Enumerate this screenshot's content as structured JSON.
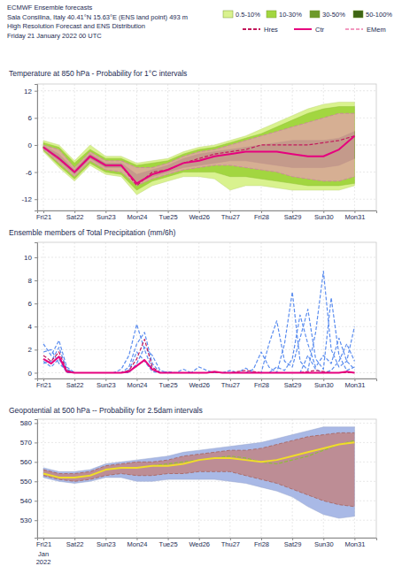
{
  "header": {
    "lines": [
      "ECMWF Ensemble forecasts",
      "Sala Consilina, Italy 40.41°N 15.63°E (ENS land point) 493 m",
      "High Resolution Forecast and ENS Distribution",
      "Friday 21 January 2022 00 UTC"
    ]
  },
  "chart_data": [
    {
      "type": "line",
      "title": "Temperature at 850 hPa - Probability for 1°C intervals",
      "grid": true,
      "legend": "top right",
      "x": [
        21,
        21.5,
        22,
        22.5,
        23,
        23.5,
        24,
        24.5,
        25,
        25.5,
        26,
        26.5,
        27,
        27.5,
        28,
        28.5,
        29,
        29.5,
        30,
        30.5,
        31
      ],
      "xlim": [
        20.8,
        31.7
      ],
      "xticks": [
        {
          "value": 21,
          "label": "Fri21"
        },
        {
          "value": 22,
          "label": "Sat22"
        },
        {
          "value": 23,
          "label": "Sun23"
        },
        {
          "value": 24,
          "label": "Mon24"
        },
        {
          "value": 25,
          "label": "Tue25"
        },
        {
          "value": 26,
          "label": "Wed26"
        },
        {
          "value": 27,
          "label": "Thu27"
        },
        {
          "value": 28,
          "label": "Fri28"
        },
        {
          "value": 29,
          "label": "Sat29"
        },
        {
          "value": 30,
          "label": "Sun30"
        },
        {
          "value": 31,
          "label": "Mon31"
        }
      ],
      "ylim": [
        -14.5,
        13.5
      ],
      "yticks": [
        -12,
        -6,
        0,
        6,
        12
      ],
      "series": [
        {
          "name": "0.5-10%",
          "type": "area",
          "color": "#d9f28f",
          "low": [
            -1.5,
            -5,
            -8,
            -4.5,
            -6.5,
            -7,
            -11,
            -9,
            -8,
            -7,
            -7,
            -7.5,
            -10,
            -9,
            -9,
            -9.5,
            -10,
            -10,
            -10,
            -10,
            -9
          ],
          "high": [
            1,
            0,
            -3.5,
            0,
            -2.5,
            -2.5,
            -4,
            -3.5,
            -3,
            -1.5,
            -0.5,
            0,
            1,
            2,
            3.5,
            5,
            6.5,
            8,
            9,
            9.5,
            9.5
          ]
        },
        {
          "name": "10-30%",
          "type": "area",
          "color": "#a2d640",
          "low": [
            -1.2,
            -4.5,
            -7.5,
            -4,
            -6,
            -6.5,
            -10,
            -8,
            -7,
            -6,
            -6,
            -6,
            -7,
            -7,
            -7.5,
            -8,
            -8.5,
            -9,
            -9,
            -9,
            -8.5
          ],
          "high": [
            0.5,
            -0.5,
            -4,
            -1,
            -3,
            -3,
            -4.5,
            -4,
            -3.5,
            -2,
            -1,
            -0.5,
            0.5,
            1.5,
            2.5,
            4,
            5.5,
            7,
            8,
            8.5,
            8.5
          ]
        },
        {
          "name": "30-50%",
          "type": "area",
          "color": "#6e9a2a",
          "low": [
            -0.8,
            -3.5,
            -6.5,
            -3,
            -5,
            -5,
            -8.5,
            -7,
            -6,
            -5,
            -4.5,
            -4,
            -3.5,
            -3.5,
            -4,
            -4.5,
            -5,
            -5,
            -5,
            -4.5,
            -3
          ],
          "high": [
            -0.2,
            -2,
            -5.5,
            -2,
            -4,
            -4,
            -6.5,
            -5.5,
            -4.5,
            -3,
            -2,
            -1.5,
            -1,
            -0.5,
            0,
            0.5,
            1,
            1,
            1,
            1.5,
            3
          ]
        },
        {
          "name": "50-100%",
          "type": "area",
          "color": "#3e6414",
          "low": [
            -0.6,
            -3.2,
            -6.2,
            -2.8,
            -4.8,
            -4.8,
            null,
            null,
            null,
            null,
            null,
            null,
            null,
            null,
            null,
            null,
            null,
            null,
            null,
            null,
            null
          ],
          "high": [
            -0.4,
            -2.6,
            -5.8,
            -2.2,
            -4.2,
            -4.2,
            null,
            null,
            null,
            null,
            null,
            null,
            null,
            null,
            null,
            null,
            null,
            null,
            null,
            null,
            null
          ]
        },
        {
          "name": "Hres",
          "type": "line",
          "color": "#c2185b",
          "line_style": "dashed",
          "values": [
            -0.5,
            -3,
            -6,
            -2.5,
            -4.5,
            -4.5,
            -9,
            -6,
            -5.5,
            -4,
            -3,
            -2,
            -1.5,
            -1,
            0,
            0,
            0,
            0,
            0.5,
            1,
            2
          ]
        },
        {
          "name": "Ctr",
          "type": "line",
          "color": "#e6007e",
          "line_style": "solid",
          "values": [
            -0.5,
            -3,
            -6,
            -2.5,
            -4.5,
            -4.5,
            -8.5,
            -6.5,
            -5.5,
            -4,
            -3.5,
            -2.5,
            -2,
            -1.5,
            -1.5,
            -1.5,
            -2,
            -2.5,
            -2.5,
            -1,
            2
          ]
        },
        {
          "name": "EMem",
          "type": "area",
          "color": "#f29ac0",
          "line_style": "dashed",
          "low": [
            -1,
            -4,
            -7,
            -3.5,
            -5.5,
            -6,
            -9,
            -7.5,
            -6.5,
            -5.5,
            -5,
            -4.5,
            -4.5,
            -5,
            -5.5,
            -6,
            -7,
            -7.5,
            -8,
            -8,
            -7
          ],
          "high": [
            0,
            -1,
            -5,
            -1.5,
            -3.5,
            -3.5,
            -5,
            -5,
            -4,
            -2.5,
            -1.5,
            -1,
            0,
            1,
            2,
            3,
            4,
            5,
            6,
            7,
            7
          ]
        }
      ]
    },
    {
      "type": "line",
      "title": "Ensemble members of Total Precipitation (mm/6h)",
      "grid": true,
      "x": [
        21,
        21.25,
        21.5,
        21.75,
        22,
        22.25,
        22.5,
        22.75,
        23,
        23.25,
        23.5,
        23.75,
        24,
        24.25,
        24.5,
        24.75,
        25,
        25.25,
        25.5,
        25.75,
        26,
        26.25,
        26.5,
        26.75,
        27,
        27.25,
        27.5,
        27.75,
        28,
        28.25,
        28.5,
        28.75,
        29,
        29.25,
        29.5,
        29.75,
        30,
        30.25,
        30.5,
        30.75,
        31
      ],
      "xlim": [
        20.8,
        31.7
      ],
      "xticks": [
        {
          "value": 21,
          "label": "Fri21"
        },
        {
          "value": 22,
          "label": "Sat22"
        },
        {
          "value": 23,
          "label": "Sun23"
        },
        {
          "value": 24,
          "label": "Mon24"
        },
        {
          "value": 25,
          "label": "Tue25"
        },
        {
          "value": 26,
          "label": "Wed26"
        },
        {
          "value": 27,
          "label": "Thu27"
        },
        {
          "value": 28,
          "label": "Fri28"
        },
        {
          "value": 29,
          "label": "Sat29"
        },
        {
          "value": 30,
          "label": "Sun30"
        },
        {
          "value": 31,
          "label": "Mon31"
        }
      ],
      "ylim": [
        -0.5,
        11.3
      ],
      "yticks": [
        0,
        2,
        4,
        6,
        8,
        10
      ],
      "series": [
        {
          "type": "line",
          "color": "#5b8def",
          "line_style": "dashed",
          "values": [
            2.5,
            1.5,
            2.8,
            0.5,
            0,
            0,
            0,
            0,
            0,
            0,
            0.3,
            1.5,
            4.2,
            2.0,
            0.3,
            0,
            0.1,
            0,
            0,
            0,
            0.5,
            0.2,
            0,
            0,
            0,
            0,
            0,
            0.3,
            1.8,
            0.5,
            0,
            2.5,
            7.0,
            1.0,
            0.2,
            3.5,
            8.8,
            2.0,
            0.5,
            1.0,
            4.0
          ]
        },
        {
          "type": "line",
          "color": "#5b8def",
          "line_style": "dashed",
          "values": [
            1.0,
            0.5,
            1.2,
            0,
            0,
            0,
            0,
            0,
            0,
            0,
            0,
            0.5,
            2.5,
            3.5,
            0.8,
            0,
            0,
            0,
            0.3,
            0,
            0,
            0,
            0,
            0,
            0,
            0,
            0.4,
            0,
            0,
            2.5,
            4.5,
            1.0,
            0.5,
            3.0,
            5.5,
            1.2,
            0.3,
            6.5,
            1.5,
            0.2,
            0.5
          ]
        },
        {
          "type": "line",
          "color": "#5b8def",
          "line_style": "dashed",
          "values": [
            1.8,
            2.0,
            0.8,
            0.2,
            0,
            0,
            0,
            0,
            0,
            0,
            0,
            0.2,
            1.8,
            1.0,
            0.1,
            0,
            0,
            0,
            0,
            0,
            0,
            0,
            0,
            0,
            0.2,
            0,
            0,
            0,
            0,
            0,
            0.5,
            0.2,
            1.2,
            5.0,
            2.5,
            0.5,
            1.5,
            0.8,
            3.0,
            1.0,
            0.3
          ]
        },
        {
          "type": "line",
          "color": "#5b8def",
          "line_style": "dashed",
          "values": [
            0.8,
            1.0,
            2.2,
            0.3,
            0,
            0,
            0,
            0,
            0,
            0,
            0,
            0,
            0.8,
            2.2,
            1.5,
            0.2,
            0,
            0,
            0,
            0,
            0,
            0,
            0,
            0,
            0,
            0,
            0,
            0,
            0,
            0,
            0,
            0,
            0,
            0,
            1.5,
            0.3,
            0,
            0.2,
            1.0,
            2.5,
            1.0
          ]
        },
        {
          "type": "line",
          "color": "#c2185b",
          "line_style": "dashed",
          "values": [
            1.5,
            1.0,
            1.8,
            0.2,
            0,
            0,
            0,
            0,
            0,
            0,
            0,
            0.2,
            1.2,
            2.9,
            0.5,
            0,
            0,
            0,
            0,
            0,
            0,
            0,
            0,
            0,
            0,
            0.1,
            0.2,
            0.1,
            0,
            0,
            0,
            0,
            0,
            0,
            0.1,
            0.2,
            0.1,
            0,
            0,
            0,
            0
          ]
        },
        {
          "type": "line",
          "color": "#e6007e",
          "line_style": "solid",
          "values": [
            1.2,
            0.8,
            1.4,
            0.1,
            0,
            0,
            0,
            0,
            0,
            0,
            0,
            0.1,
            0.6,
            1.1,
            0.3,
            0,
            0,
            0,
            0,
            0,
            0,
            0,
            0.1,
            0,
            0,
            0,
            0,
            0,
            0,
            0,
            0,
            0,
            0,
            0,
            0,
            0,
            0,
            0,
            0,
            0.1,
            0
          ]
        }
      ]
    },
    {
      "type": "line",
      "title": "Geopotential at 500 hPa -- Probability for 2.5dam intervals",
      "grid": true,
      "annotations": [
        "Jan",
        "2022"
      ],
      "x": [
        21,
        21.5,
        22,
        22.5,
        23,
        23.5,
        24,
        24.5,
        25,
        25.5,
        26,
        26.5,
        27,
        27.5,
        28,
        28.5,
        29,
        29.5,
        30,
        30.5,
        31
      ],
      "xlim": [
        20.8,
        31.7
      ],
      "xticks": [
        {
          "value": 21,
          "label": "Fri21"
        },
        {
          "value": 22,
          "label": "Sat22"
        },
        {
          "value": 23,
          "label": "Sun23"
        },
        {
          "value": 24,
          "label": "Mon24"
        },
        {
          "value": 25,
          "label": "Tue25"
        },
        {
          "value": 26,
          "label": "Wed26"
        },
        {
          "value": 27,
          "label": "Thu27"
        },
        {
          "value": 28,
          "label": "Fri28"
        },
        {
          "value": 29,
          "label": "Sat29"
        },
        {
          "value": 30,
          "label": "Sun30"
        },
        {
          "value": 31,
          "label": "Mon31"
        }
      ],
      "ylim": [
        521,
        582
      ],
      "yticks": [
        530,
        540,
        550,
        560,
        570,
        580
      ],
      "series": [
        {
          "type": "area",
          "color": "#a9b9e6",
          "low": [
            552,
            550,
            549,
            550,
            552,
            552,
            550,
            550,
            551,
            551,
            551,
            551,
            550,
            549,
            547,
            545,
            542,
            537,
            533,
            531,
            532
          ],
          "high": [
            557,
            555,
            555,
            556,
            559,
            560,
            561,
            562,
            563,
            565,
            566,
            567,
            568,
            569,
            570,
            572,
            574,
            576,
            578,
            578,
            578
          ]
        },
        {
          "type": "area",
          "color": "#c8746a",
          "line_style": "dashed",
          "low": [
            553,
            551,
            550,
            551,
            553,
            554,
            553,
            553,
            554,
            554,
            555,
            555,
            555,
            553,
            551,
            549,
            546,
            543,
            540,
            538,
            537
          ],
          "high": [
            556,
            554,
            554,
            555,
            558,
            559,
            560,
            560,
            561,
            563,
            564,
            565,
            566,
            566,
            567,
            569,
            571,
            573,
            574,
            575,
            575
          ]
        },
        {
          "type": "line",
          "color": "#8fbc3a",
          "line_style": "dashed",
          "values": [
            554,
            552,
            552,
            553,
            556,
            557,
            557,
            558,
            559,
            560,
            561,
            562,
            563,
            562,
            560,
            559,
            561,
            563,
            566,
            569,
            571
          ]
        },
        {
          "type": "line",
          "color": "#f0dc2a",
          "line_style": "solid",
          "values": [
            554,
            552,
            552,
            553,
            556,
            557,
            557,
            558,
            558,
            559,
            561,
            562,
            562,
            561,
            560,
            561,
            563,
            565,
            567,
            569,
            570
          ]
        }
      ]
    }
  ]
}
